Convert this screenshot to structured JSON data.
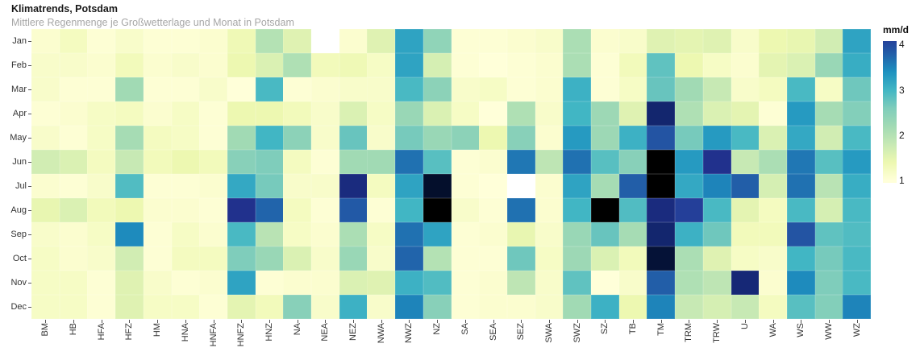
{
  "header": {
    "title": "Klimatrends, Potsdam",
    "subtitle": "Mittlere Regenmenge je Großwetterlage und Monat in Potsdam"
  },
  "chart_data": {
    "type": "heatmap",
    "title": "Klimatrends, Potsdam",
    "subtitle": "Mittlere Regenmenge je Großwetterlage und Monat in Potsdam",
    "unit": "mm/d",
    "x_categories": [
      "BM",
      "HB",
      "HFA",
      "HFZ",
      "HM",
      "HNA",
      "HNFA",
      "HNFZ",
      "HNZ",
      "NA",
      "NEA",
      "NEZ",
      "NWA",
      "NWZ",
      "NZ",
      "SA",
      "SEA",
      "SEZ",
      "SWA",
      "SWZ",
      "SZ",
      "TB",
      "TM",
      "TRM",
      "TRW",
      "U",
      "WA",
      "WS",
      "WW",
      "WZ"
    ],
    "y_categories": [
      "Jan",
      "Feb",
      "Mar",
      "Apr",
      "May",
      "Jun",
      "Jul",
      "Aug",
      "Sep",
      "Oct",
      "Nov",
      "Dec"
    ],
    "values": [
      [
        1.1,
        1.25,
        1.05,
        1.15,
        1.05,
        1.05,
        1.1,
        1.35,
        2.0,
        1.55,
        null,
        1.1,
        1.55,
        3.2,
        2.4,
        1.05,
        1.05,
        1.1,
        1.15,
        2.1,
        1.1,
        1.15,
        1.55,
        1.5,
        1.55,
        1.15,
        1.4,
        1.45,
        1.7,
        3.2
      ],
      [
        1.15,
        1.15,
        1.1,
        1.3,
        1.1,
        1.15,
        1.1,
        1.4,
        1.6,
        2.05,
        1.3,
        1.35,
        1.2,
        3.2,
        1.65,
        1.05,
        1.0,
        1.05,
        1.1,
        2.1,
        1.05,
        1.3,
        2.8,
        1.4,
        1.2,
        1.1,
        1.5,
        1.6,
        2.3,
        3.1
      ],
      [
        1.15,
        1.05,
        1.05,
        2.2,
        1.05,
        1.05,
        1.15,
        1.0,
        2.95,
        1.05,
        1.1,
        1.15,
        1.15,
        2.95,
        2.45,
        1.15,
        1.2,
        1.05,
        1.1,
        3.05,
        1.05,
        1.2,
        2.75,
        2.2,
        1.8,
        1.15,
        1.25,
        2.95,
        1.2,
        2.7
      ],
      [
        1.05,
        1.1,
        1.2,
        1.25,
        1.1,
        1.2,
        1.05,
        1.4,
        1.4,
        1.3,
        1.15,
        1.6,
        1.2,
        2.3,
        1.6,
        1.2,
        1.0,
        2.05,
        1.15,
        3.0,
        2.25,
        1.55,
        4.45,
        2.05,
        1.6,
        1.5,
        1.05,
        3.3,
        2.15,
        2.55
      ],
      [
        1.15,
        1.05,
        1.2,
        2.15,
        1.25,
        1.2,
        1.05,
        2.2,
        3.0,
        2.45,
        1.15,
        2.75,
        1.15,
        2.65,
        2.3,
        2.45,
        1.4,
        2.5,
        1.1,
        3.3,
        2.25,
        3.05,
        3.9,
        2.65,
        3.3,
        2.95,
        1.6,
        3.15,
        1.7,
        2.95
      ],
      [
        1.7,
        1.6,
        1.25,
        1.8,
        1.3,
        1.4,
        1.3,
        2.5,
        2.6,
        1.25,
        1.05,
        2.2,
        2.2,
        3.65,
        2.85,
        1.05,
        1.1,
        3.6,
        1.9,
        3.65,
        2.85,
        2.5,
        5.0,
        3.3,
        4.25,
        1.8,
        2.1,
        3.6,
        2.85,
        3.3
      ],
      [
        1.1,
        1.05,
        1.15,
        2.9,
        1.05,
        1.05,
        1.1,
        3.15,
        2.65,
        1.15,
        1.15,
        4.35,
        1.25,
        3.2,
        4.8,
        1.05,
        1.0,
        null,
        1.1,
        3.2,
        2.15,
        3.8,
        5.0,
        3.15,
        3.5,
        3.8,
        1.65,
        3.65,
        1.95,
        3.1
      ],
      [
        1.45,
        1.6,
        1.3,
        1.4,
        1.1,
        1.1,
        1.05,
        4.25,
        3.75,
        1.25,
        1.05,
        3.85,
        1.05,
        3.0,
        5.0,
        1.15,
        1.05,
        3.65,
        1.1,
        3.0,
        5.0,
        2.9,
        4.35,
        4.1,
        2.95,
        1.5,
        1.25,
        2.95,
        1.65,
        2.95
      ],
      [
        1.15,
        1.1,
        1.2,
        3.45,
        1.05,
        1.2,
        1.1,
        2.95,
        1.95,
        1.2,
        1.1,
        2.1,
        1.2,
        3.65,
        3.2,
        1.05,
        1.1,
        1.45,
        1.15,
        2.3,
        2.75,
        2.15,
        4.45,
        3.05,
        2.7,
        1.3,
        1.3,
        3.9,
        2.8,
        2.9
      ],
      [
        1.2,
        1.1,
        1.15,
        1.7,
        1.05,
        1.25,
        1.25,
        2.6,
        2.3,
        1.6,
        1.15,
        2.3,
        1.15,
        3.75,
        2.0,
        1.05,
        1.05,
        2.7,
        1.2,
        2.25,
        1.6,
        1.3,
        4.75,
        2.1,
        1.55,
        1.2,
        1.15,
        3.0,
        2.65,
        2.95
      ],
      [
        1.2,
        1.2,
        1.05,
        1.55,
        1.15,
        1.05,
        1.1,
        3.2,
        1.05,
        1.1,
        1.1,
        1.6,
        1.55,
        3.05,
        2.9,
        1.05,
        1.1,
        1.9,
        1.15,
        2.8,
        1.0,
        1.15,
        3.8,
        2.05,
        1.9,
        4.4,
        1.1,
        3.45,
        2.6,
        2.95
      ],
      [
        1.2,
        1.2,
        1.05,
        1.55,
        1.2,
        1.2,
        1.05,
        1.5,
        1.3,
        2.5,
        1.15,
        3.05,
        1.15,
        3.5,
        2.5,
        1.05,
        1.1,
        1.1,
        1.15,
        2.2,
        3.05,
        1.4,
        3.5,
        1.8,
        1.65,
        1.8,
        1.25,
        2.85,
        2.55,
        3.5
      ]
    ],
    "legend": {
      "title": "mm/d",
      "ticks": [
        "4",
        "3",
        "2",
        "1"
      ],
      "position": "right",
      "min": 1,
      "max": 4
    },
    "colormap": {
      "name": "YlGnBu",
      "stops": [
        [
          1.0,
          "#ffffd9"
        ],
        [
          1.4,
          "#edf8b1"
        ],
        [
          1.8,
          "#c7e9b4"
        ],
        [
          2.2,
          "#a1dab4"
        ],
        [
          2.6,
          "#7fcdbb"
        ],
        [
          3.0,
          "#41b6c4"
        ],
        [
          3.4,
          "#1d91c0"
        ],
        [
          3.8,
          "#225ea8"
        ],
        [
          4.2,
          "#253494"
        ],
        [
          4.6,
          "#081d58"
        ],
        [
          5.0,
          "#000000"
        ]
      ],
      "missing_color": "#ffffff"
    },
    "grid": false
  }
}
